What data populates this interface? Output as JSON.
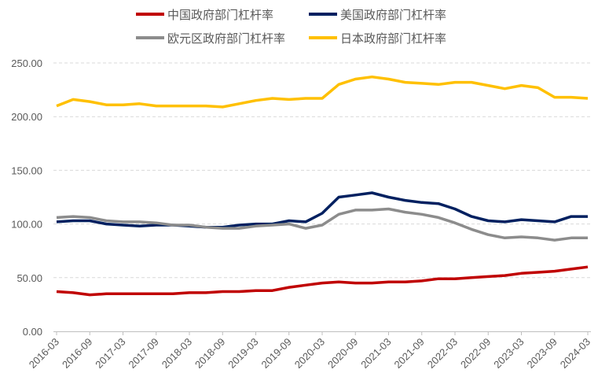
{
  "chart_data": {
    "type": "line",
    "title": "",
    "xlabel": "",
    "ylabel": "",
    "ylim": [
      0,
      250
    ],
    "yticks": [
      "0.00",
      "50.00",
      "100.00",
      "150.00",
      "200.00",
      "250.00"
    ],
    "grid": true,
    "legend_position": "top",
    "x": [
      "2016-03",
      "2016-06",
      "2016-09",
      "2016-12",
      "2017-03",
      "2017-06",
      "2017-09",
      "2017-12",
      "2018-03",
      "2018-06",
      "2018-09",
      "2018-12",
      "2019-03",
      "2019-06",
      "2019-09",
      "2019-12",
      "2020-03",
      "2020-06",
      "2020-09",
      "2020-12",
      "2021-03",
      "2021-06",
      "2021-09",
      "2021-12",
      "2022-03",
      "2022-06",
      "2022-09",
      "2022-12",
      "2023-03",
      "2023-06",
      "2023-09",
      "2023-12",
      "2024-03"
    ],
    "xtick_labels": [
      "2016-03",
      "2016-09",
      "2017-03",
      "2017-09",
      "2018-03",
      "2018-09",
      "2019-03",
      "2019-09",
      "2020-03",
      "2020-09",
      "2021-03",
      "2021-09",
      "2022-03",
      "2022-09",
      "2023-03",
      "2023-09",
      "2024-03"
    ],
    "series": [
      {
        "name": "中国政府部门杠杆率",
        "color": "#C00000",
        "values": [
          37,
          36,
          34,
          35,
          35,
          35,
          35,
          35,
          36,
          36,
          37,
          37,
          38,
          38,
          41,
          43,
          45,
          46,
          45,
          45,
          46,
          46,
          47,
          49,
          49,
          50,
          51,
          52,
          54,
          55,
          56,
          58,
          60
        ]
      },
      {
        "name": "美国政府部门杠杆率",
        "color": "#002060",
        "values": [
          102,
          103,
          103,
          100,
          99,
          98,
          99,
          99,
          98,
          97,
          97,
          99,
          100,
          100,
          103,
          102,
          110,
          125,
          127,
          129,
          125,
          122,
          120,
          119,
          114,
          107,
          103,
          102,
          104,
          103,
          102,
          107,
          107
        ]
      },
      {
        "name": "欧元区政府部门杠杆率",
        "color": "#8C8C8C",
        "values": [
          106,
          107,
          106,
          103,
          102,
          102,
          101,
          99,
          99,
          97,
          96,
          96,
          98,
          99,
          100,
          96,
          99,
          109,
          113,
          113,
          114,
          111,
          109,
          106,
          101,
          95,
          90,
          87,
          88,
          87,
          85,
          87,
          87
        ]
      },
      {
        "name": "日本政府部门杠杆率",
        "color": "#FFC000",
        "values": [
          210,
          216,
          214,
          211,
          211,
          212,
          210,
          210,
          210,
          210,
          209,
          212,
          215,
          217,
          216,
          217,
          217,
          230,
          235,
          237,
          235,
          232,
          231,
          230,
          232,
          232,
          229,
          226,
          229,
          227,
          218,
          218,
          217
        ]
      }
    ]
  }
}
